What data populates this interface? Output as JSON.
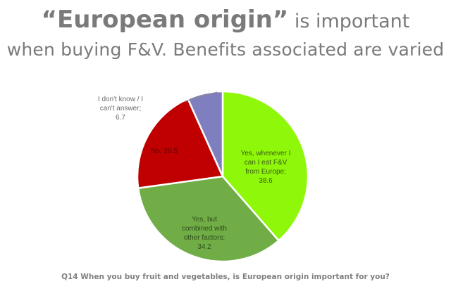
{
  "header": {
    "title_bold": "“European origin”",
    "title_rest": " is important",
    "subtitle": "when buying F&V. Benefits associated are varied"
  },
  "chart_data": {
    "type": "pie",
    "title": "“European origin” is important when buying F&V. Benefits associated are varied",
    "question": "Q14 When you buy fruit and vegetables, is European origin important for you?",
    "start_angle": "12 o'clock, clockwise",
    "slices": [
      {
        "label": "Yes, whenever I can I eat F&V from Europe",
        "value": 38.6,
        "color": "#8ff70a"
      },
      {
        "label": "Yes, but combined with other factors",
        "value": 34.2,
        "color": "#70ad47"
      },
      {
        "label": "No",
        "value": 20.5,
        "color": "#c00000"
      },
      {
        "label": "I don't know / I can't answer",
        "value": 6.7,
        "color": "#7f7fbf"
      }
    ],
    "legend": "none (data labels on slices)"
  },
  "labels": {
    "yes_always": [
      "Yes, whenever I",
      "can I eat F&V",
      "from Europe;",
      "38.6"
    ],
    "yes_combined": [
      "Yes, but",
      "combined with",
      "other factors;",
      "34.2"
    ],
    "no": "No; 20.5",
    "dont_know": [
      "I don't know / I",
      "can't answer;",
      "6.7"
    ]
  },
  "footer": {
    "caption": "Q14 When you buy fruit and vegetables, is European origin important for you?"
  }
}
